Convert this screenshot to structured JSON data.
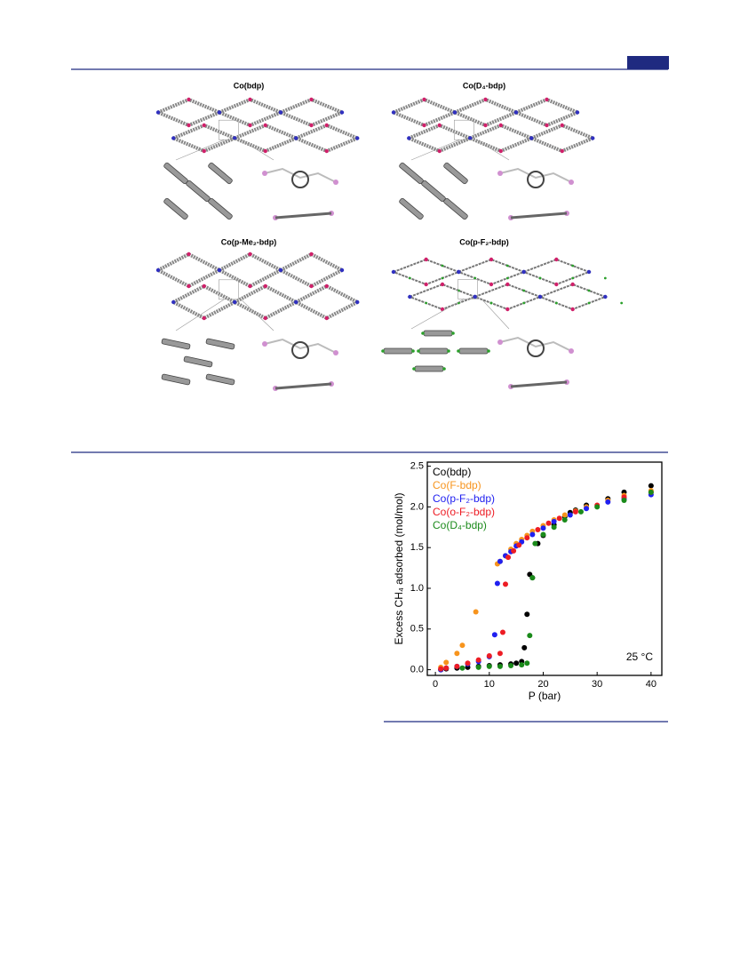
{
  "figure1": {
    "panels": [
      {
        "title": "Co(bdp)"
      },
      {
        "title": "Co(D₄-bdp)"
      },
      {
        "title": "Co(p-Me₂-bdp)"
      },
      {
        "title": "Co(p-F₂-bdp)"
      }
    ]
  },
  "chart_data": {
    "type": "scatter",
    "xlabel": "P (bar)",
    "ylabel": "Excess CH₄ adsorbed (mol/mol)",
    "annotation": "25 °C",
    "xlim": [
      -1.5,
      42
    ],
    "ylim": [
      -0.07,
      2.55
    ],
    "xticks": [
      0,
      10,
      20,
      30,
      40
    ],
    "yticks": [
      {
        "value": 0,
        "label": "0.0"
      },
      {
        "value": 0.5,
        "label": "0.5"
      },
      {
        "value": 1,
        "label": "1.0"
      },
      {
        "value": 1.5,
        "label": "1.5"
      },
      {
        "value": 2,
        "label": "2.0"
      },
      {
        "value": 2.5,
        "label": "2.5"
      }
    ],
    "legend": "upper left",
    "series": [
      {
        "name": "Co(bdp)",
        "color": "#000000",
        "x": [
          1,
          2,
          4,
          6,
          8,
          10,
          12,
          14,
          15,
          16,
          16.5,
          17,
          17.5,
          18,
          19,
          20,
          22,
          24,
          25,
          26,
          28,
          32,
          35,
          40
        ],
        "values": [
          0,
          0.01,
          0.02,
          0.03,
          0.04,
          0.05,
          0.06,
          0.07,
          0.08,
          0.1,
          0.27,
          0.68,
          1.17,
          1.13,
          1.55,
          1.65,
          1.78,
          1.88,
          1.93,
          1.96,
          2.02,
          2.1,
          2.18,
          2.26
        ]
      },
      {
        "name": "Co(F-bdp)",
        "color": "#f7941d",
        "x": [
          1,
          2,
          4,
          5,
          7.5,
          11.5,
          12,
          13,
          14,
          15,
          16,
          17,
          18,
          20,
          22,
          24,
          26,
          28,
          32,
          35,
          40
        ],
        "values": [
          0.03,
          0.09,
          0.2,
          0.3,
          0.71,
          1.3,
          1.33,
          1.4,
          1.48,
          1.55,
          1.6,
          1.65,
          1.7,
          1.77,
          1.84,
          1.9,
          1.95,
          2.0,
          2.08,
          2.14,
          2.2
        ]
      },
      {
        "name": "Co(p-F₂-bdp)",
        "color": "#2020f0",
        "x": [
          1,
          2,
          4,
          6,
          8,
          10,
          11,
          11.5,
          12,
          13,
          14,
          15,
          16,
          18,
          20,
          22,
          25,
          28,
          32,
          35,
          40
        ],
        "values": [
          0,
          0.02,
          0.04,
          0.07,
          0.1,
          0.16,
          0.43,
          1.06,
          1.33,
          1.4,
          1.45,
          1.52,
          1.57,
          1.66,
          1.74,
          1.82,
          1.9,
          1.98,
          2.06,
          2.1,
          2.15
        ]
      },
      {
        "name": "Co(o-F₂-bdp)",
        "color": "#ed1c24",
        "x": [
          1,
          2,
          4,
          6,
          8,
          10,
          12,
          12.5,
          13,
          13.5,
          14.5,
          15.5,
          17,
          19,
          21,
          23,
          26,
          30,
          35,
          40
        ],
        "values": [
          0.01,
          0.02,
          0.04,
          0.08,
          0.12,
          0.17,
          0.2,
          0.46,
          1.05,
          1.38,
          1.46,
          1.53,
          1.62,
          1.72,
          1.8,
          1.86,
          1.94,
          2.02,
          2.12,
          2.18
        ]
      },
      {
        "name": "Co(D₄-bdp)",
        "color": "#1a8a1a",
        "x": [
          5,
          8,
          10,
          12,
          14,
          16,
          17,
          17.5,
          18,
          18.5,
          20,
          22,
          24,
          27,
          30,
          35,
          40
        ],
        "values": [
          0.02,
          0.03,
          0.04,
          0.04,
          0.05,
          0.06,
          0.08,
          0.42,
          1.13,
          1.55,
          1.66,
          1.75,
          1.84,
          1.94,
          2.0,
          2.08,
          2.18
        ]
      }
    ]
  }
}
